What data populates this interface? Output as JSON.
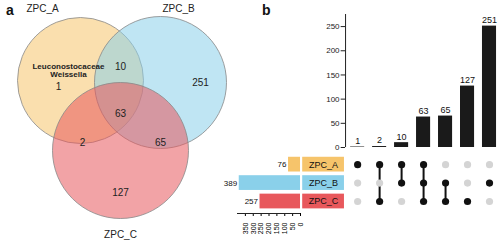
{
  "chart_data": [
    {
      "type": "venn",
      "title": "a",
      "sets": [
        {
          "name": "ZPC_A",
          "color": "#f6c46b"
        },
        {
          "name": "ZPC_B",
          "color": "#8ad0ea"
        },
        {
          "name": "ZPC_C",
          "color": "#e8585c"
        }
      ],
      "regions": [
        {
          "sets": [
            "ZPC_A"
          ],
          "value": 1,
          "annotation": [
            "Leuconostocaceae",
            "Weissella"
          ]
        },
        {
          "sets": [
            "ZPC_B"
          ],
          "value": 251
        },
        {
          "sets": [
            "ZPC_C"
          ],
          "value": 127
        },
        {
          "sets": [
            "ZPC_A",
            "ZPC_B"
          ],
          "value": 10
        },
        {
          "sets": [
            "ZPC_A",
            "ZPC_C"
          ],
          "value": 2
        },
        {
          "sets": [
            "ZPC_B",
            "ZPC_C"
          ],
          "value": 65
        },
        {
          "sets": [
            "ZPC_A",
            "ZPC_B",
            "ZPC_C"
          ],
          "value": 63
        }
      ]
    },
    {
      "type": "upset",
      "title": "b",
      "sets": [
        {
          "name": "ZPC_A",
          "size": 76,
          "color": "#f6c46b"
        },
        {
          "name": "ZPC_B",
          "size": 389,
          "color": "#8ad0ea"
        },
        {
          "name": "ZPC_C",
          "size": 257,
          "color": "#e8585c"
        }
      ],
      "intersections": [
        {
          "sets": [
            "ZPC_A"
          ],
          "value": 1
        },
        {
          "sets": [
            "ZPC_A",
            "ZPC_C"
          ],
          "value": 2
        },
        {
          "sets": [
            "ZPC_A",
            "ZPC_B"
          ],
          "value": 10
        },
        {
          "sets": [
            "ZPC_A",
            "ZPC_B",
            "ZPC_C"
          ],
          "value": 63
        },
        {
          "sets": [
            "ZPC_B",
            "ZPC_C"
          ],
          "value": 65
        },
        {
          "sets": [
            "ZPC_C"
          ],
          "value": 127
        },
        {
          "sets": [
            "ZPC_B"
          ],
          "value": 251
        }
      ],
      "color": "#1a1a1a",
      "ylim": [
        0,
        275
      ],
      "yticks": [
        0,
        50,
        100,
        150,
        200,
        250
      ],
      "xlim": [
        0,
        400
      ],
      "xticks": [
        0,
        50,
        100,
        150,
        200,
        250,
        300,
        350
      ],
      "data_labels": true
    }
  ]
}
